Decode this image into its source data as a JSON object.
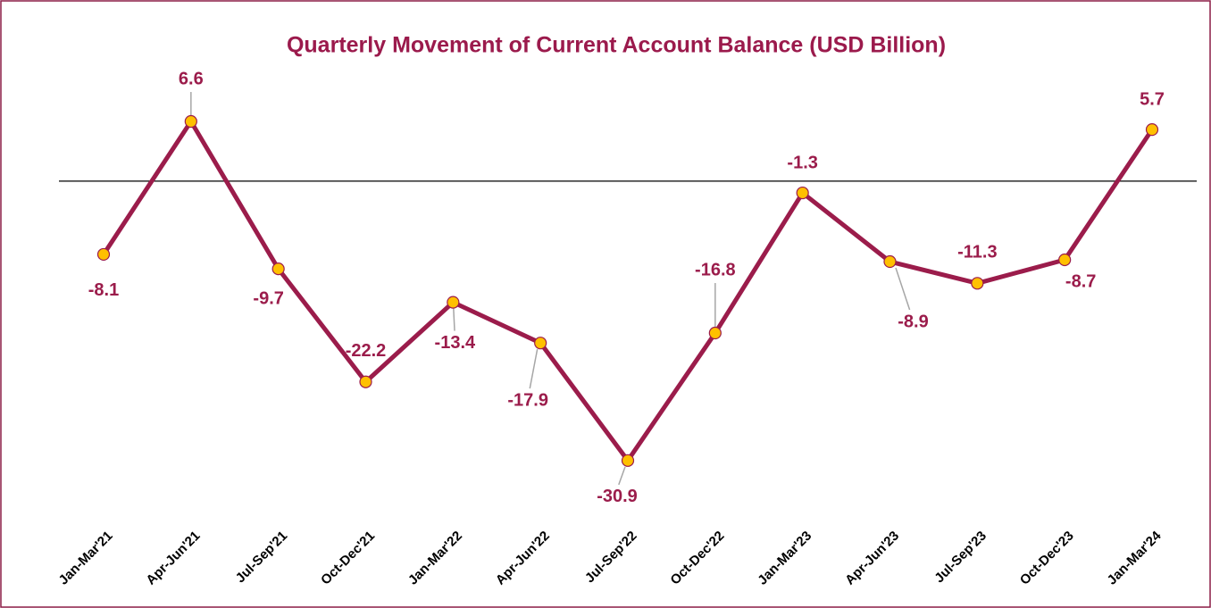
{
  "chart_data": {
    "type": "line",
    "title": "Quarterly Movement of Current Account Balance (USD Billion)",
    "categories": [
      "Jan-Mar'21",
      "Apr-Jun'21",
      "Jul-Sep'21",
      "Oct-Dec'21",
      "Jan-Mar'22",
      "Apr-Jun'22",
      "Jul-Sep'22",
      "Oct-Dec'22",
      "Jan-Mar'23",
      "Apr-Jun'23",
      "Jul-Sep'23",
      "Oct-Dec'23",
      "Jan-Mar'24"
    ],
    "series": [
      {
        "name": "Current Account Balance",
        "color": "#9b1c4b",
        "marker_color": "#ffc000",
        "values": [
          -8.1,
          6.6,
          -9.7,
          -22.2,
          -13.4,
          -17.9,
          -30.9,
          -16.8,
          -1.3,
          -8.9,
          -11.3,
          -8.7,
          5.7
        ]
      }
    ],
    "ylim": [
      -40,
      10
    ]
  }
}
